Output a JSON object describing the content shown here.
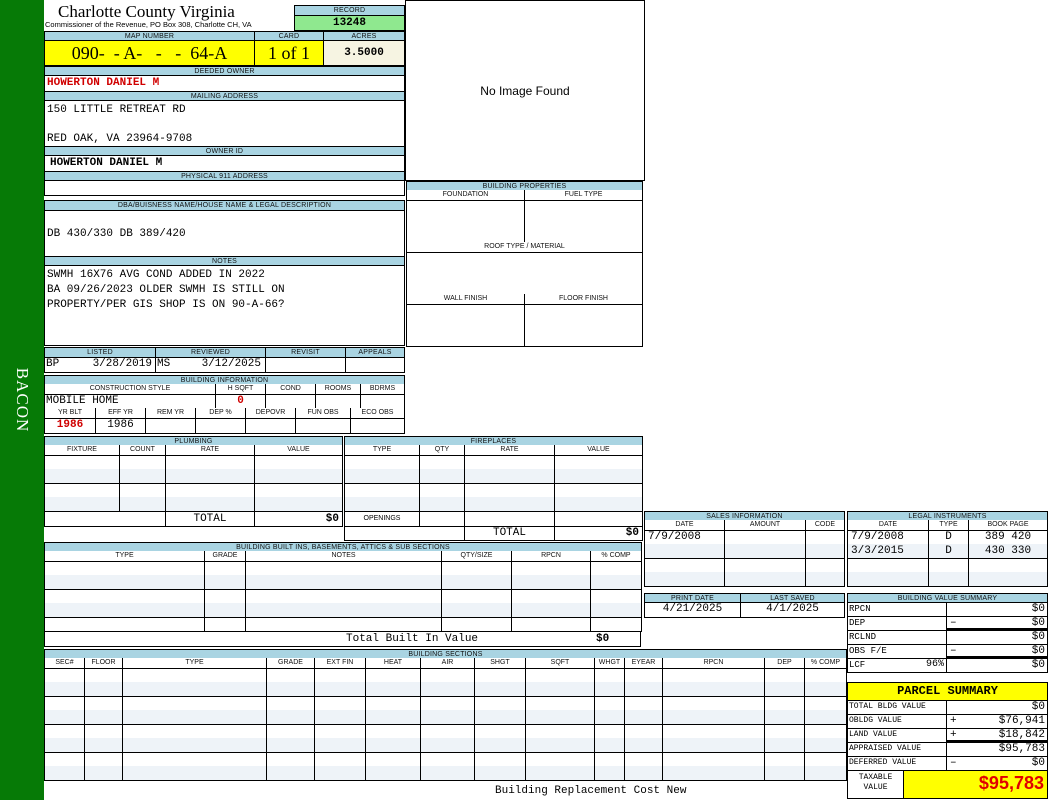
{
  "sidebar": {
    "label": "BACON",
    "color": "#067a06"
  },
  "header": {
    "title": "Charlotte County Virginia",
    "subtitle": "Commissioner of the Revenue, PO Box 308, Charlotte CH, VA",
    "record_label": "RECORD",
    "record_value": "13248"
  },
  "parcel": {
    "map_label": "MAP NUMBER",
    "map_value": "090-  - A-   -   -  64-A",
    "card_label": "CARD",
    "card_value": "1 of 1",
    "acres_label": "ACRES",
    "acres_value": "3.5000"
  },
  "owner": {
    "deeded_label": "DEEDED OWNER",
    "deeded_value": "HOWERTON DANIEL M",
    "mailing_label": "MAILING ADDRESS",
    "mailing_line1": "150 LITTLE RETREAT RD",
    "mailing_line2": "RED OAK, VA 23964-9708",
    "owner_id_label": "OWNER ID",
    "owner_id_value": "HOWERTON DANIEL M",
    "physical_label": "PHYSICAL 911 ADDRESS",
    "physical_value": ""
  },
  "dba": {
    "label": "DBA/BUISNESS NAME/HOUSE NAME & LEGAL DESCRIPTION",
    "value": "DB 430/330 DB 389/420"
  },
  "notes": {
    "label": "NOTES",
    "lines": [
      "SWMH 16X76 AVG COND ADDED IN 2022",
      "BA 09/26/2023 OLDER SWMH IS STILL ON",
      "PROPERTY/PER GIS SHOP IS ON 90-A-66?"
    ]
  },
  "image": {
    "text": "No Image Found"
  },
  "status": {
    "listed_label": "LISTED",
    "listed_by": "BP",
    "listed_date": "3/28/2019",
    "reviewed_label": "REVIEWED",
    "reviewed_by": "MS",
    "reviewed_date": "3/12/2025",
    "revisit_label": "REVISIT",
    "appeals_label": "APPEALS"
  },
  "building_info": {
    "label": "BUILDING INFORMATION",
    "construction_label": "CONSTRUCTION STYLE",
    "construction_value": "MOBILE HOME",
    "hsqft_label": "H SQFT",
    "hsqft_value": "0",
    "cond_label": "COND",
    "rooms_label": "ROOMS",
    "bdrms_label": "BDRMS",
    "yrblt_label": "YR BLT",
    "yrblt_value": "1986",
    "effyr_label": "EFF YR",
    "effyr_value": "1986",
    "remyr_label": "REM YR",
    "dep_label": "DEP %",
    "depovr_label": "DEPOVR",
    "funobs_label": "FUN OBS",
    "ecoobs_label": "ECO OBS"
  },
  "building_properties": {
    "label": "BUILDING PROPERTIES",
    "foundation": "FOUNDATION",
    "fuel": "FUEL TYPE",
    "roof": "ROOF TYPE / MATERIAL",
    "wall": "WALL FINISH",
    "floor": "FLOOR FINISH"
  },
  "plumbing": {
    "label": "PLUMBING",
    "columns": [
      "FIXTURE",
      "COUNT",
      "RATE",
      "VALUE"
    ],
    "total_label": "TOTAL",
    "total_value": "$0"
  },
  "fireplaces": {
    "label": "FIREPLACES",
    "columns": [
      "TYPE",
      "QTY",
      "RATE",
      "VALUE"
    ],
    "openings_label": "OPENINGS",
    "total_label": "TOTAL",
    "total_value": "$0"
  },
  "built_ins": {
    "label": "BUILDING BUILT INS, BASEMENTS, ATTICS & SUB SECTIONS",
    "columns": [
      "TYPE",
      "GRADE",
      "NOTES",
      "QTY/SIZE",
      "RPCN",
      "% COMP"
    ],
    "total_label": "Total Built In Value",
    "total_value": "$0"
  },
  "sections": {
    "label": "BUILDING SECTIONS",
    "columns": [
      "SEC#",
      "FLOOR",
      "TYPE",
      "GRADE",
      "EXT FIN",
      "HEAT",
      "AIR",
      "SHGT",
      "SQFT",
      "WHGT",
      "EYEAR",
      "RPCN",
      "DEP",
      "% COMP"
    ],
    "footer": "Building Replacement Cost New"
  },
  "sales": {
    "label": "SALES INFORMATION",
    "columns": [
      "DATE",
      "AMOUNT",
      "CODE"
    ],
    "rows": [
      [
        "7/9/2008",
        "",
        ""
      ]
    ]
  },
  "legal": {
    "label": "LEGAL INSTRUMENTS",
    "columns": [
      "DATE",
      "TYPE",
      "BOOK PAGE"
    ],
    "rows": [
      [
        "7/9/2008",
        "D",
        "389 420"
      ],
      [
        "3/3/2015",
        "D",
        "430 330"
      ]
    ]
  },
  "dates": {
    "print_label": "PRINT DATE",
    "print_value": "4/21/2025",
    "saved_label": "LAST SAVED",
    "saved_value": "4/1/2025"
  },
  "value_summary": {
    "label": "BUILDING VALUE SUMMARY",
    "rows": [
      {
        "label": "RPCN",
        "sign": "",
        "value": "$0"
      },
      {
        "label": "DEP",
        "sign": "–",
        "value": "$0"
      },
      {
        "label": "RCLND",
        "sign": "",
        "value": "$0"
      },
      {
        "label": "OBS F/E",
        "sign": "–",
        "value": "$0"
      },
      {
        "label": "LCF",
        "pct": "96%",
        "sign": "",
        "value": "$0"
      }
    ]
  },
  "parcel_summary": {
    "label": "PARCEL SUMMARY",
    "rows": [
      {
        "label": "TOTAL BLDG VALUE",
        "sign": "",
        "value": "$0"
      },
      {
        "label": "OBLDG VALUE",
        "sign": "+",
        "value": "$76,941"
      },
      {
        "label": "LAND VALUE",
        "sign": "+",
        "value": "$18,842"
      },
      {
        "label": "APPRAISED VALUE",
        "sign": "",
        "value": "$95,783"
      },
      {
        "label": "DEFERRED VALUE",
        "sign": "–",
        "value": "$0"
      }
    ],
    "taxable_label_1": "TAXABLE",
    "taxable_label_2": "VALUE",
    "taxable_value": "$95,783"
  },
  "colors": {
    "header_bg": "#a9d4e2",
    "highlight": "#ffff00",
    "record_bg": "#8fe88f",
    "accent_red": "#d00000"
  }
}
